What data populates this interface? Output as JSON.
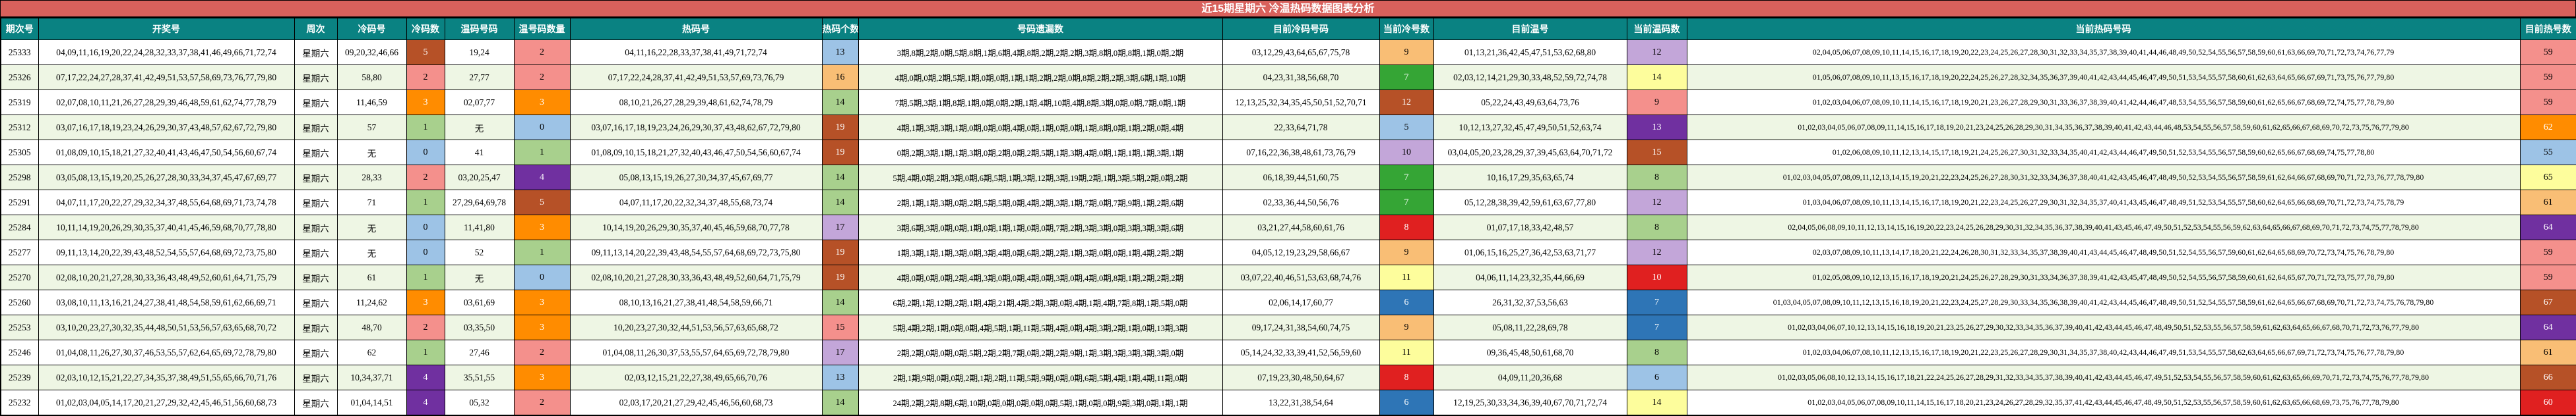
{
  "title": "近15期星期六 冷温热码数据图表分析",
  "palette": {
    "title_bg": "#d8615c",
    "header_bg": "#0a8282",
    "row_alt_bg": "#eef6e4",
    "border": "#000000",
    "blue_light": "#9dc3e6",
    "green_light": "#a8d08d",
    "pink": "#f4908c",
    "orange": "#ff8c00",
    "purple": "#7030a0",
    "brown": "#b65127",
    "orange_light": "#f9be75",
    "yellow": "#fdfd9c",
    "lavender": "#c3a6d9",
    "green_strong": "#35a535",
    "red": "#e02020",
    "blue_strong": "#2e75b6"
  },
  "headers": {
    "period": "期次号",
    "drawn": "开奖号",
    "week": "周次",
    "cold": "冷码号",
    "cold_n": "冷码数",
    "warm": "温码号码",
    "warm_n": "温号码数量",
    "hot": "热码号",
    "hot_n": "热码个数",
    "miss": "号码遗漏数",
    "cur_cold": "目前冷码号码",
    "cur_cold_n": "当前冷号数",
    "cur_warm": "目前温号",
    "cur_warm_n": "当前温码数",
    "cur_hot": "当前热码号码",
    "cur_hot_n": "目前热号数"
  },
  "rows": [
    {
      "period": "25333",
      "week": "星期六",
      "drawn": "04,09,11,16,19,20,22,24,28,32,33,37,38,41,46,49,66,71,72,74",
      "cold": "09,20,32,46,66",
      "cold_n": "5",
      "cold_c": "brown",
      "warm": "19,24",
      "warm_n": "2",
      "warm_c": "pink",
      "hot": "04,11,16,22,28,33,37,38,41,49,71,72,74",
      "hot_n": "13",
      "hot_c": "blue_light",
      "miss": "3期,8期,2期,0期,5期,8期,1期,6期,4期,8期,2期,2期,2期,3期,8期,0期,8期,1期,0期,2期",
      "cur_cold": "03,12,29,43,64,65,67,75,78",
      "cur_cold_n": "9",
      "cur_cold_c": "orange_light",
      "cur_warm": "01,13,21,36,42,45,47,51,53,62,68,80",
      "cur_warm_n": "12",
      "cur_warm_c": "lavender",
      "cur_hot": "02,04,05,06,07,08,09,10,11,14,15,16,17,18,19,20,22,23,24,25,26,27,28,30,31,32,33,34,35,37,38,39,40,41,44,46,48,49,50,52,54,55,56,57,58,59,60,61,63,66,69,70,71,72,73,74,76,77,79",
      "cur_hot_n": "59",
      "cur_hot_c": "pink"
    },
    {
      "period": "25326",
      "week": "星期六",
      "drawn": "07,17,22,24,27,28,37,41,42,49,51,53,57,58,69,73,76,77,79,80",
      "cold": "58,80",
      "cold_n": "2",
      "cold_c": "pink",
      "warm": "27,77",
      "warm_n": "2",
      "warm_c": "pink",
      "hot": "07,17,22,24,28,37,41,42,49,51,53,57,69,73,76,79",
      "hot_n": "16",
      "hot_c": "orange_light",
      "miss": "4期,0期,0期,2期,5期,1期,0期,0期,1期,1期,2期,2期,0期,8期,2期,2期,3期,6期,1期,10期",
      "cur_cold": "04,23,31,38,56,68,70",
      "cur_cold_n": "7",
      "cur_cold_c": "green_strong",
      "cur_warm": "02,03,12,14,21,29,30,33,48,52,59,72,74,78",
      "cur_warm_n": "14",
      "cur_warm_c": "yellow",
      "cur_hot": "01,05,06,07,08,09,10,11,13,15,16,17,18,19,20,22,24,25,26,27,28,32,34,35,36,37,39,40,41,42,43,44,45,46,47,49,50,51,53,54,55,57,58,60,61,62,63,64,65,66,67,69,71,73,75,76,77,79,80",
      "cur_hot_n": "59",
      "cur_hot_c": "pink"
    },
    {
      "period": "25319",
      "week": "星期六",
      "drawn": "02,07,08,10,11,21,26,27,28,29,39,46,48,59,61,62,74,77,78,79",
      "cold": "11,46,59",
      "cold_n": "3",
      "cold_c": "orange",
      "warm": "02,07,77",
      "warm_n": "3",
      "warm_c": "orange",
      "hot": "08,10,21,26,27,28,29,39,48,61,62,74,78,79",
      "hot_n": "14",
      "hot_c": "green_light",
      "miss": "7期,5期,3期,1期,8期,1期,0期,0期,2期,1期,4期,10期,4期,8期,3期,0期,0期,7期,0期,1期",
      "cur_cold": "12,13,25,32,34,35,45,50,51,52,70,71",
      "cur_cold_n": "12",
      "cur_cold_c": "brown",
      "cur_warm": "05,22,24,43,49,63,64,73,76",
      "cur_warm_n": "9",
      "cur_warm_c": "pink",
      "cur_hot": "01,02,03,04,06,07,08,09,10,11,14,15,16,17,18,19,20,21,23,26,27,28,29,30,31,33,36,37,38,39,40,41,42,44,46,47,48,53,54,55,56,57,58,59,60,61,62,65,66,67,68,69,72,74,75,77,78,79,80",
      "cur_hot_n": "59",
      "cur_hot_c": "pink"
    },
    {
      "period": "25312",
      "week": "星期六",
      "drawn": "03,07,16,17,18,19,23,24,26,29,30,37,43,48,57,62,67,72,79,80",
      "cold": "57",
      "cold_n": "1",
      "cold_c": "green_light",
      "warm": "无",
      "warm_n": "0",
      "warm_c": "blue_light",
      "hot": "03,07,16,17,18,19,23,24,26,29,30,37,43,48,62,67,72,79,80",
      "hot_n": "19",
      "hot_c": "brown",
      "miss": "4期,1期,3期,3期,1期,0期,0期,0期,4期,0期,1期,0期,0期,1期,8期,0期,1期,2期,0期,4期",
      "cur_cold": "22,33,64,71,78",
      "cur_cold_n": "5",
      "cur_cold_c": "blue_light",
      "cur_warm": "10,12,13,27,32,45,47,49,50,51,52,63,74",
      "cur_warm_n": "13",
      "cur_warm_c": "purple",
      "cur_hot": "01,02,03,04,05,06,07,08,09,11,14,15,16,17,18,19,20,21,23,24,25,26,28,29,30,31,34,35,36,37,38,39,40,41,42,43,44,46,48,53,54,55,56,57,58,59,60,61,62,65,66,67,68,69,70,72,73,75,76,77,79,80",
      "cur_hot_n": "62",
      "cur_hot_c": "orange"
    },
    {
      "period": "25305",
      "week": "星期六",
      "drawn": "01,08,09,10,15,18,21,27,32,40,41,43,46,47,50,54,56,60,67,74",
      "cold": "无",
      "cold_n": "0",
      "cold_c": "blue_light",
      "warm": "41",
      "warm_n": "1",
      "warm_c": "green_light",
      "hot": "01,08,09,10,15,18,21,27,32,40,43,46,47,50,54,56,60,67,74",
      "hot_n": "19",
      "hot_c": "brown",
      "miss": "0期,2期,3期,1期,1期,3期,0期,2期,0期,2期,5期,1期,3期,4期,0期,1期,1期,1期,3期,1期",
      "cur_cold": "07,16,22,36,38,48,61,73,76,79",
      "cur_cold_n": "10",
      "cur_cold_c": "lavender",
      "cur_warm": "03,04,05,20,23,28,29,37,39,45,63,64,70,71,72",
      "cur_warm_n": "15",
      "cur_warm_c": "brown",
      "cur_hot": "01,02,06,08,09,10,11,12,13,14,15,17,18,19,21,24,25,26,27,30,31,32,33,34,35,40,41,42,43,44,46,47,49,50,51,52,53,54,55,56,57,58,59,60,62,65,66,67,68,69,74,75,77,78,80",
      "cur_hot_n": "55",
      "cur_hot_c": "blue_light"
    },
    {
      "period": "25298",
      "week": "星期六",
      "drawn": "03,05,08,13,15,19,20,25,26,27,28,30,33,34,37,45,47,67,69,77",
      "cold": "28,33",
      "cold_n": "2",
      "cold_c": "pink",
      "warm": "03,20,25,47",
      "warm_n": "4",
      "warm_c": "purple",
      "hot": "05,08,13,15,19,26,27,30,34,37,45,67,69,77",
      "hot_n": "14",
      "hot_c": "green_light",
      "miss": "5期,4期,0期,2期,3期,0期,6期,5期,1期,3期,12期,3期,19期,2期,1期,3期,5期,2期,0期,2期",
      "cur_cold": "06,18,39,44,51,60,75",
      "cur_cold_n": "7",
      "cur_cold_c": "green_strong",
      "cur_warm": "10,16,17,29,35,63,65,74",
      "cur_warm_n": "8",
      "cur_warm_c": "green_light",
      "cur_hot": "01,02,03,04,05,07,08,09,11,12,13,14,15,19,20,21,22,23,24,25,26,27,28,30,31,32,33,34,36,37,38,40,41,42,43,45,46,47,48,49,50,52,53,54,55,56,57,58,59,61,62,64,66,67,68,69,70,71,72,73,76,77,78,79,80",
      "cur_hot_n": "65",
      "cur_hot_c": "yellow"
    },
    {
      "period": "25291",
      "week": "星期六",
      "drawn": "04,07,11,17,20,22,27,29,32,34,37,48,55,64,68,69,71,73,74,78",
      "cold": "71",
      "cold_n": "1",
      "cold_c": "green_light",
      "warm": "27,29,64,69,78",
      "warm_n": "5",
      "warm_c": "brown",
      "hot": "04,07,11,17,20,22,32,34,37,48,55,68,73,74",
      "hot_n": "14",
      "hot_c": "green_light",
      "miss": "2期,1期,1期,3期,0期,2期,5期,5期,0期,4期,2期,3期,1期,7期,0期,7期,9期,1期,2期,6期",
      "cur_cold": "02,33,36,44,50,56,76",
      "cur_cold_n": "7",
      "cur_cold_c": "green_strong",
      "cur_warm": "05,12,28,38,39,42,59,61,63,67,77,80",
      "cur_warm_n": "12",
      "cur_warm_c": "lavender",
      "cur_hot": "01,03,04,06,07,08,09,10,11,13,14,15,16,17,18,19,20,21,22,23,24,25,26,27,29,30,31,32,34,35,37,40,41,43,45,46,47,48,49,51,52,53,54,55,57,58,60,62,64,65,66,68,69,70,71,72,73,74,75,78,79",
      "cur_hot_n": "61",
      "cur_hot_c": "orange_light"
    },
    {
      "period": "25284",
      "week": "星期六",
      "drawn": "10,11,14,19,20,26,29,30,35,37,40,41,45,46,59,68,70,77,78,80",
      "cold": "无",
      "cold_n": "0",
      "cold_c": "blue_light",
      "warm": "11,41,80",
      "warm_n": "3",
      "warm_c": "orange",
      "hot": "10,14,19,20,26,29,30,35,37,40,45,46,59,68,70,77,78",
      "hot_n": "17",
      "hot_c": "lavender",
      "miss": "3期,6期,3期,0期,0期,1期,0期,1期,1期,0期,0期,7期,2期,3期,3期,0期,3期,3期,3期,6期",
      "cur_cold": "03,21,27,44,58,60,61,76",
      "cur_cold_n": "8",
      "cur_cold_c": "red",
      "cur_warm": "01,07,17,18,33,42,48,57",
      "cur_warm_n": "8",
      "cur_warm_c": "green_light",
      "cur_hot": "02,04,05,06,08,09,10,11,12,13,14,15,16,19,20,22,23,24,25,26,28,29,30,31,32,34,35,36,37,38,39,40,41,43,45,46,47,49,50,51,52,53,54,55,56,59,62,63,64,65,66,67,68,69,70,71,72,73,74,75,77,78,79,80",
      "cur_hot_n": "64",
      "cur_hot_c": "purple"
    },
    {
      "period": "25277",
      "week": "星期六",
      "drawn": "09,11,13,14,20,22,39,43,48,52,54,55,57,64,68,69,72,73,75,80",
      "cold": "无",
      "cold_n": "0",
      "cold_c": "blue_light",
      "warm": "52",
      "warm_n": "1",
      "warm_c": "green_light",
      "hot": "09,11,13,14,20,22,39,43,48,54,55,57,64,68,69,72,73,75,80",
      "hot_n": "19",
      "hot_c": "brown",
      "miss": "1期,3期,1期,1期,3期,0期,3期,4期,0期,6期,2期,2期,1期,3期,0期,0期,1期,4期,2期,2期",
      "cur_cold": "04,05,12,19,23,29,58,66,67",
      "cur_cold_n": "9",
      "cur_cold_c": "orange_light",
      "cur_warm": "01,06,15,16,25,27,36,42,53,63,71,77",
      "cur_warm_n": "12",
      "cur_warm_c": "lavender",
      "cur_hot": "02,03,07,08,09,10,11,13,14,17,18,20,21,22,24,26,28,30,31,32,33,34,35,37,38,39,40,41,43,44,45,46,47,48,49,50,51,52,54,55,56,57,59,60,61,62,64,65,68,69,70,72,73,74,75,76,78,79,80",
      "cur_hot_n": "59",
      "cur_hot_c": "pink"
    },
    {
      "period": "25270",
      "week": "星期六",
      "drawn": "02,08,10,20,21,27,28,30,33,36,43,48,49,52,60,61,64,71,75,79",
      "cold": "61",
      "cold_n": "1",
      "cold_c": "green_light",
      "warm": "无",
      "warm_n": "0",
      "warm_c": "blue_light",
      "hot": "02,08,10,20,21,27,28,30,33,36,43,48,49,52,60,64,71,75,79",
      "hot_n": "19",
      "hot_c": "brown",
      "miss": "4期,0期,0期,0期,2期,4期,3期,0期,0期,4期,0期,3期,0期,4期,0期,8期,1期,2期,2期,2期",
      "cur_cold": "03,07,22,40,46,51,53,63,68,74,76",
      "cur_cold_n": "11",
      "cur_cold_c": "yellow",
      "cur_warm": "04,06,11,14,23,32,35,44,66,69",
      "cur_warm_n": "10",
      "cur_warm_c": "red",
      "cur_hot": "01,02,05,08,09,10,12,13,15,16,17,18,19,20,21,24,25,26,27,28,29,30,31,33,34,36,37,38,39,41,42,43,45,47,48,49,50,52,54,55,56,57,58,59,60,61,62,64,65,67,70,71,72,73,75,77,78,79,80",
      "cur_hot_n": "59",
      "cur_hot_c": "pink"
    },
    {
      "period": "25260",
      "week": "星期六",
      "drawn": "03,08,10,11,13,16,21,24,27,38,41,48,54,58,59,61,62,66,69,71",
      "cold": "11,24,62",
      "cold_n": "3",
      "cold_c": "orange",
      "warm": "03,61,69",
      "warm_n": "3",
      "warm_c": "orange",
      "hot": "08,10,13,16,21,27,38,41,48,54,58,59,66,71",
      "hot_n": "14",
      "hot_c": "green_light",
      "miss": "6期,2期,1期,12期,2期,1期,4期,21期,4期,2期,3期,0期,4期,1期,4期,7期,8期,1期,5期,0期",
      "cur_cold": "02,06,14,17,60,77",
      "cur_cold_n": "6",
      "cur_cold_c": "blue_strong",
      "cur_warm": "26,31,32,37,53,56,63",
      "cur_warm_n": "7",
      "cur_warm_c": "blue_strong",
      "cur_hot": "01,03,04,05,07,08,09,10,11,12,13,15,16,18,19,20,21,22,23,24,25,27,28,29,30,33,34,35,36,38,39,40,41,42,43,44,45,46,47,48,49,50,51,52,54,55,57,58,59,61,62,64,65,66,67,68,69,70,71,72,73,74,75,76,78,79,80",
      "cur_hot_n": "67",
      "cur_hot_c": "brown"
    },
    {
      "period": "25253",
      "week": "星期六",
      "drawn": "03,10,20,23,27,30,32,35,44,48,50,51,53,56,57,63,65,68,70,72",
      "cold": "48,70",
      "cold_n": "2",
      "cold_c": "pink",
      "warm": "03,35,50",
      "warm_n": "3",
      "warm_c": "orange",
      "hot": "10,20,23,27,30,32,44,51,53,56,57,63,65,68,72",
      "hot_n": "15",
      "hot_c": "pink",
      "miss": "5期,4期,2期,1期,0期,0期,4期,5期,1期,11期,5期,4期,0期,4期,3期,2期,1期,0期,13期,3期",
      "cur_cold": "09,17,24,31,38,54,60,74,75",
      "cur_cold_n": "9",
      "cur_cold_c": "orange_light",
      "cur_warm": "05,08,11,22,28,69,78",
      "cur_warm_n": "7",
      "cur_warm_c": "blue_strong",
      "cur_hot": "01,02,03,04,06,07,10,12,13,14,15,16,18,19,20,21,23,25,26,27,29,30,32,33,34,35,36,37,39,40,41,42,43,44,45,46,47,48,49,50,51,52,53,55,56,57,58,59,61,62,63,64,65,66,67,68,70,71,72,73,76,77,79,80",
      "cur_hot_n": "64",
      "cur_hot_c": "purple"
    },
    {
      "period": "25246",
      "week": "星期六",
      "drawn": "01,04,08,11,26,27,30,37,46,53,55,57,62,64,65,69,72,78,79,80",
      "cold": "62",
      "cold_n": "1",
      "cold_c": "green_light",
      "warm": "27,46",
      "warm_n": "2",
      "warm_c": "pink",
      "hot": "01,04,08,11,26,30,37,53,55,57,64,65,69,72,78,79,80",
      "hot_n": "17",
      "hot_c": "lavender",
      "miss": "2期,2期,0期,0期,0期,5期,2期,2期,7期,0期,2期,2期,9期,1期,3期,3期,3期,3期,3期,0期",
      "cur_cold": "05,14,24,32,33,39,41,52,56,59,60",
      "cur_cold_n": "11",
      "cur_cold_c": "yellow",
      "cur_warm": "09,36,45,48,50,61,68,70",
      "cur_warm_n": "8",
      "cur_warm_c": "green_light",
      "cur_hot": "01,02,03,04,06,07,08,10,11,12,13,15,16,17,18,19,20,21,22,23,25,26,27,28,29,30,31,34,35,37,38,40,42,43,44,46,47,49,51,53,54,55,57,58,62,63,64,65,66,67,69,71,72,73,74,75,76,77,78,79,80",
      "cur_hot_n": "61",
      "cur_hot_c": "orange_light"
    },
    {
      "period": "25239",
      "week": "星期六",
      "drawn": "02,03,10,12,15,21,22,27,34,35,37,38,49,51,55,65,66,70,71,76",
      "cold": "10,34,37,71",
      "cold_n": "4",
      "cold_c": "purple",
      "warm": "35,51,55",
      "warm_n": "3",
      "warm_c": "orange",
      "hot": "02,03,12,15,21,22,27,38,49,65,66,70,76",
      "hot_n": "13",
      "hot_c": "blue_light",
      "miss": "2期,1期,9期,0期,0期,2期,1期,2期,11期,5期,9期,0期,0期,6期,5期,4期,1期,4期,11期,0期",
      "cur_cold": "07,19,23,30,48,50,64,67",
      "cur_cold_n": "8",
      "cur_cold_c": "red",
      "cur_warm": "04,09,11,20,36,68",
      "cur_warm_n": "6",
      "cur_warm_c": "blue_light",
      "cur_hot": "01,02,03,05,06,08,10,12,13,14,15,16,17,18,21,22,24,25,26,27,28,29,31,32,33,34,35,37,38,39,40,41,42,43,44,45,46,47,49,51,52,53,54,55,56,57,58,59,60,61,62,63,65,66,69,70,71,72,73,74,75,76,77,78,79,80",
      "cur_hot_n": "66",
      "cur_hot_c": "brown"
    },
    {
      "period": "25232",
      "week": "星期六",
      "drawn": "01,02,03,04,05,14,17,20,21,27,29,32,42,45,46,51,56,60,68,73",
      "cold": "01,04,14,51",
      "cold_n": "4",
      "cold_c": "purple",
      "warm": "05,32",
      "warm_n": "2",
      "warm_c": "pink",
      "hot": "02,03,17,20,21,27,29,42,45,46,56,60,68,73",
      "hot_n": "14",
      "hot_c": "green_light",
      "miss": "24期,2期,2期,8期,6期,10期,0期,0期,0期,0期,0期,5期,1期,0期,0期,9期,3期,0期,1期,1期",
      "cur_cold": "13,22,31,38,54,64",
      "cur_cold_n": "6",
      "cur_cold_c": "blue_strong",
      "cur_warm": "12,19,25,30,33,34,36,39,40,67,70,71,72,74",
      "cur_warm_n": "14",
      "cur_warm_c": "yellow",
      "cur_hot": "01,02,03,04,05,06,07,08,09,10,11,14,15,16,17,18,20,21,23,24,26,27,28,29,32,35,37,41,42,43,44,45,46,47,48,49,50,51,52,53,55,56,57,58,59,60,61,62,63,65,66,68,69,73,75,76,77,78,79,80",
      "cur_hot_n": "60",
      "cur_hot_c": "red"
    }
  ]
}
